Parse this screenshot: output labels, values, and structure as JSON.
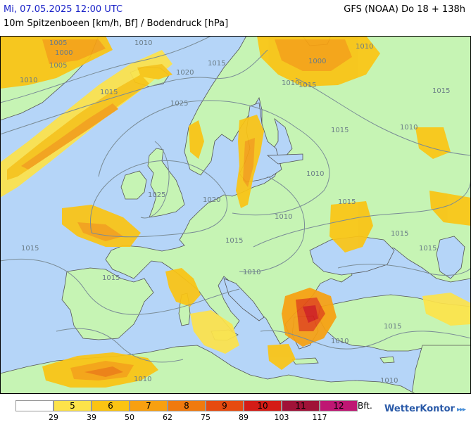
{
  "header": {
    "date": "Mi, 07.05.2025 12:00 UTC",
    "model": "GFS (NOAA) Do 18 + 138h",
    "parameter": "10m Spitzenboeen [km/h, Bf] / Bodendruck [hPa]"
  },
  "colors": {
    "sea": "#b5d5f8",
    "land": "#c6f4b4",
    "bft5": "#fde34a",
    "bft6": "#fbc413",
    "bft7": "#f8a010",
    "bft8": "#f07a0e",
    "bft9": "#e64b10",
    "bft10": "#d41c16",
    "bft11": "#a01238",
    "bft12": "#bf1673"
  },
  "isobar_labels": [
    "1005",
    "1000",
    "1005",
    "1010",
    "1015",
    "1020",
    "1025",
    "1010",
    "1015",
    "1010",
    "1000",
    "1010",
    "1015",
    "1015",
    "1010",
    "1015",
    "1015",
    "1015",
    "1020",
    "1025",
    "1010",
    "1015",
    "1010",
    "1015",
    "1015",
    "1010",
    "1010",
    "1015",
    "1010",
    "1010",
    "1015"
  ],
  "legend": {
    "unit": "Bft.",
    "boxes": [
      {
        "label": "",
        "color": "#ffffff"
      },
      {
        "label": "5",
        "color": "#fde34a"
      },
      {
        "label": "6",
        "color": "#fbc413"
      },
      {
        "label": "7",
        "color": "#f8a010"
      },
      {
        "label": "8",
        "color": "#f07a0e"
      },
      {
        "label": "9",
        "color": "#e64b10"
      },
      {
        "label": "10",
        "color": "#d41c16"
      },
      {
        "label": "11",
        "color": "#a01238"
      },
      {
        "label": "12",
        "color": "#bf1673"
      }
    ],
    "thresholds": [
      "29",
      "39",
      "50",
      "62",
      "75",
      "89",
      "103",
      "117"
    ]
  },
  "brand": "WetterKontor",
  "brand_mark": "▸▸▸"
}
